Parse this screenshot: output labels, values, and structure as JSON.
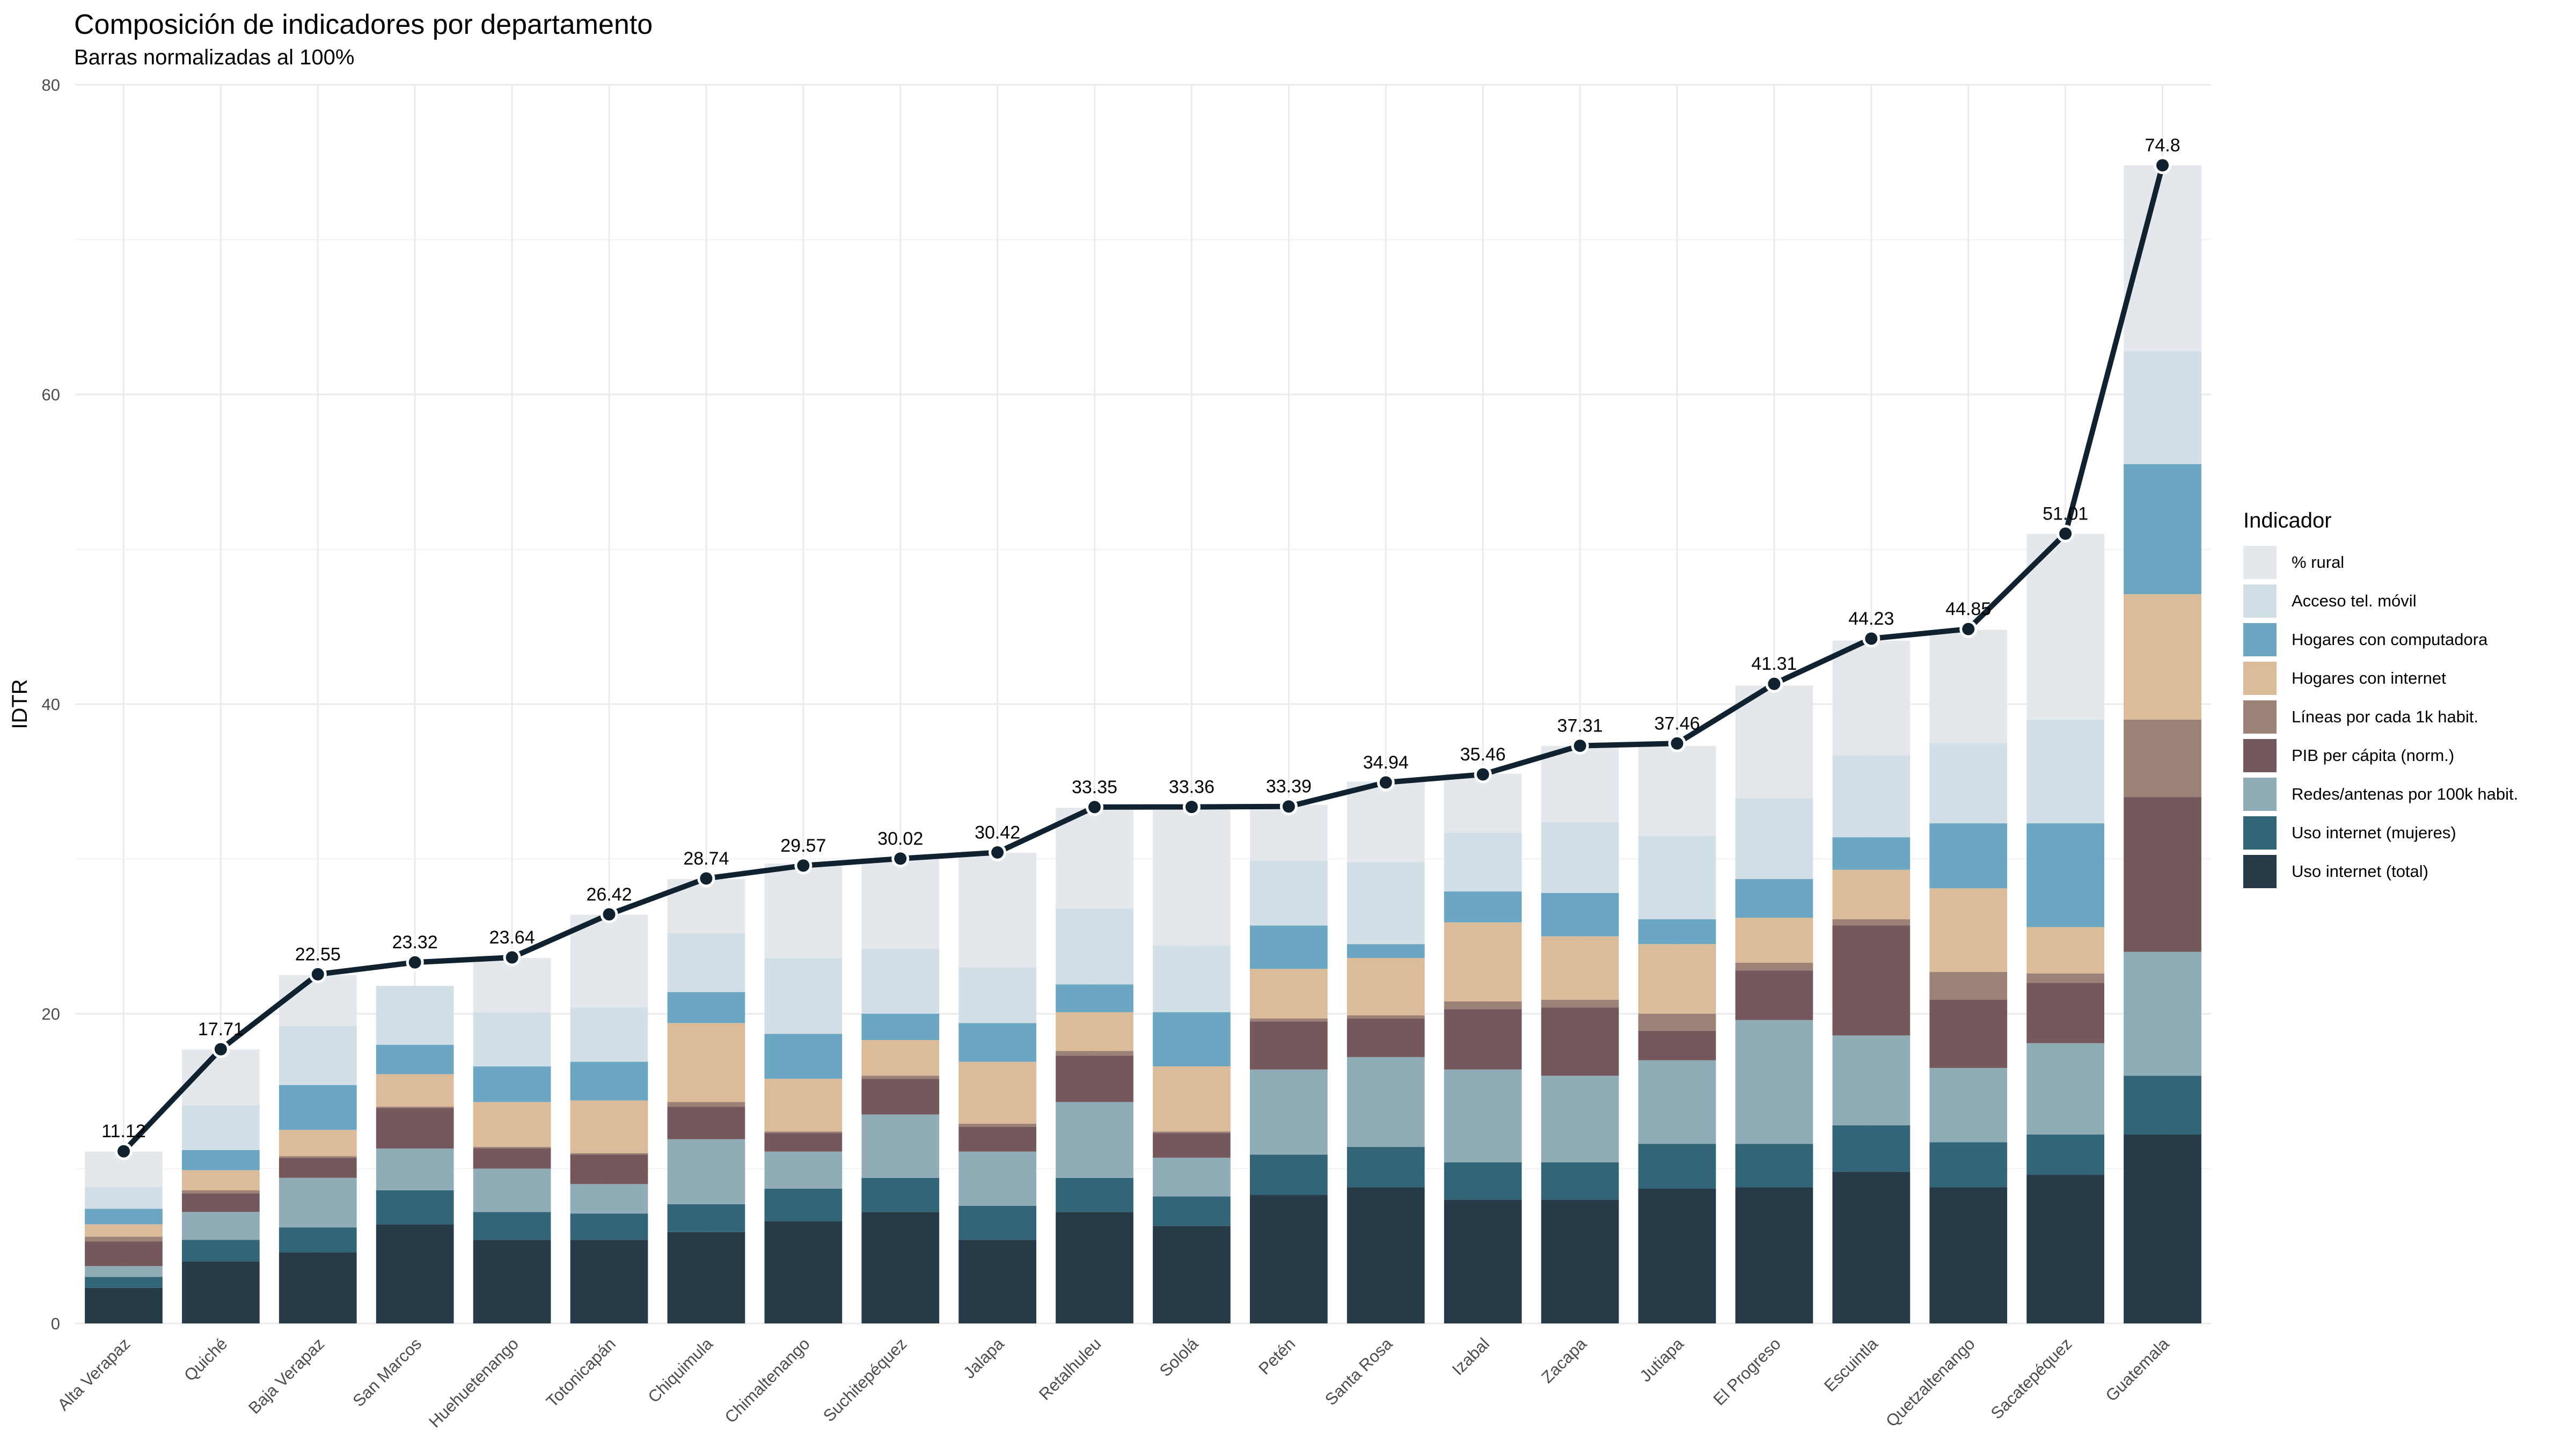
{
  "chart_data": {
    "type": "bar",
    "stacked": true,
    "title": "Composición de indicadores por departamento",
    "subtitle": "Barras normalizadas al 100%",
    "xlabel": "",
    "ylabel": "IDTR",
    "ylim": [
      0,
      80
    ],
    "yticks": [
      0,
      20,
      40,
      60,
      80
    ],
    "grid": true,
    "legend_position": "right",
    "legend_title": "Indicador",
    "categories": [
      "Alta Verapaz",
      "Quiché",
      "Baja Verapaz",
      "San Marcos",
      "Huehuetenango",
      "Totonicapán",
      "Chiquimula",
      "Chimaltenango",
      "Suchitepéquez",
      "Jalapa",
      "Retalhuleu",
      "Sololá",
      "Petén",
      "Santa Rosa",
      "Izabal",
      "Zacapa",
      "Jutiapa",
      "El Progreso",
      "Escuintla",
      "Quetzaltenango",
      "Sacatepéquez",
      "Guatemala"
    ],
    "series": [
      {
        "name": "Uso internet (total)",
        "color": "#263a48",
        "values": [
          2.3,
          4.0,
          4.6,
          6.4,
          5.4,
          5.4,
          5.9,
          6.6,
          7.2,
          5.4,
          7.2,
          6.3,
          8.3,
          8.8,
          8.0,
          8.0,
          8.7,
          8.8,
          9.8,
          8.8,
          9.6,
          12.2
        ]
      },
      {
        "name": "Uso internet (mujeres)",
        "color": "#326578",
        "values": [
          0.7,
          1.4,
          1.6,
          2.2,
          1.8,
          1.7,
          1.8,
          2.1,
          2.2,
          2.2,
          2.2,
          1.9,
          2.6,
          2.6,
          2.4,
          2.4,
          2.9,
          2.8,
          3.0,
          2.9,
          2.6,
          3.8
        ]
      },
      {
        "name": "Redes/antenas por 100k habit.",
        "color": "#8facb7",
        "values": [
          0.7,
          1.8,
          3.2,
          2.7,
          2.8,
          1.9,
          4.2,
          2.4,
          4.1,
          3.5,
          4.9,
          2.5,
          5.5,
          5.8,
          6.0,
          5.6,
          5.4,
          8.0,
          5.8,
          4.8,
          5.9,
          8.0
        ]
      },
      {
        "name": "PIB per cápita (norm.)",
        "color": "#74585b",
        "values": [
          1.6,
          1.2,
          1.3,
          2.6,
          1.3,
          1.9,
          2.1,
          1.2,
          2.3,
          1.6,
          3.0,
          1.6,
          3.1,
          2.5,
          3.9,
          4.4,
          1.9,
          3.2,
          7.1,
          4.4,
          3.9,
          10.0
        ]
      },
      {
        "name": "Líneas por cada 1k habit.",
        "color": "#9b8176",
        "values": [
          0.3,
          0.2,
          0.1,
          0.1,
          0.1,
          0.1,
          0.3,
          0.1,
          0.2,
          0.2,
          0.3,
          0.1,
          0.2,
          0.2,
          0.5,
          0.5,
          1.1,
          0.5,
          0.4,
          1.8,
          0.6,
          5.0
        ]
      },
      {
        "name": "Hogares con internet",
        "color": "#dcbb9a",
        "values": [
          0.8,
          1.3,
          1.7,
          2.1,
          2.9,
          3.4,
          5.1,
          3.4,
          2.3,
          4.0,
          2.5,
          4.2,
          3.2,
          3.7,
          5.1,
          4.1,
          4.5,
          2.9,
          3.2,
          5.4,
          3.0,
          8.1
        ]
      },
      {
        "name": "Hogares con computadora",
        "color": "#6ba7c3",
        "values": [
          1.0,
          1.3,
          2.9,
          1.9,
          2.3,
          2.5,
          2.0,
          2.9,
          1.7,
          2.5,
          1.8,
          3.5,
          2.8,
          0.9,
          2.0,
          2.8,
          1.6,
          2.5,
          2.1,
          4.2,
          6.7,
          8.4
        ]
      },
      {
        "name": "Acceso tel. móvil",
        "color": "#d2dfe6",
        "values": [
          1.4,
          2.9,
          3.8,
          3.8,
          3.5,
          3.5,
          3.8,
          4.9,
          4.2,
          3.6,
          4.9,
          4.3,
          4.2,
          5.3,
          3.8,
          4.6,
          5.4,
          5.2,
          5.3,
          5.2,
          6.7,
          7.3
        ]
      },
      {
        "name": "% rural",
        "color": "#e4e8ed",
        "values": [
          2.3,
          3.6,
          3.3,
          0.0,
          3.5,
          6.0,
          3.5,
          6.1,
          5.8,
          7.4,
          6.5,
          9.1,
          3.6,
          5.2,
          3.8,
          4.9,
          5.8,
          7.3,
          7.4,
          7.3,
          12.0,
          12.0
        ]
      }
    ],
    "line": {
      "name": "IDTR",
      "color": "#10222f",
      "values": [
        11.12,
        17.71,
        22.55,
        23.32,
        23.64,
        26.42,
        28.74,
        29.57,
        30.02,
        30.42,
        33.35,
        33.36,
        33.39,
        34.94,
        35.46,
        37.31,
        37.46,
        41.31,
        44.23,
        44.85,
        51.01,
        74.8
      ],
      "labels": [
        "11.12",
        "17.71",
        "22.55",
        "23.32",
        "23.64",
        "26.42",
        "28.74",
        "29.57",
        "30.02",
        "30.42",
        "33.35",
        "33.36",
        "33.39",
        "34.94",
        "35.46",
        "37.31",
        "37.46",
        "41.31",
        "44.23",
        "44.85",
        "51.01",
        "74.8"
      ]
    }
  }
}
